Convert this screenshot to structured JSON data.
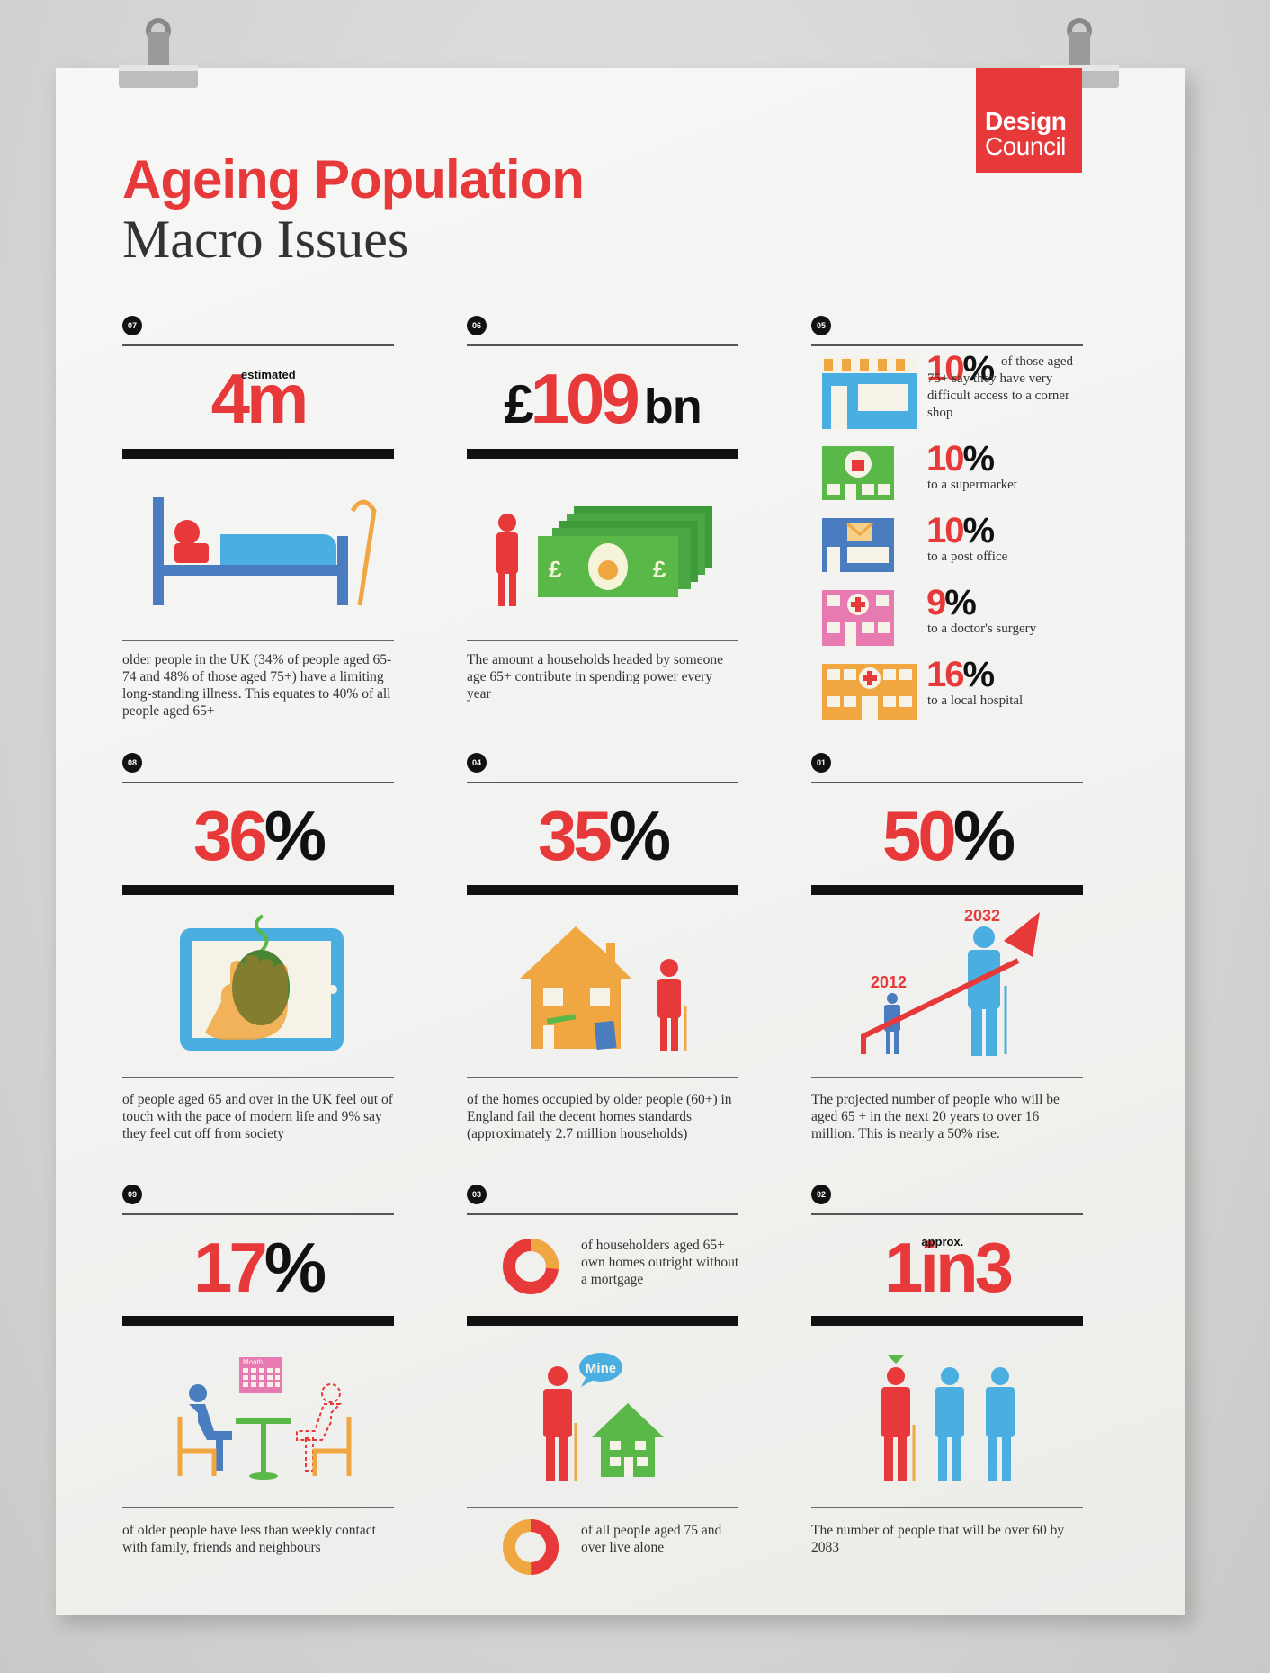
{
  "logo": {
    "line1": "Design",
    "line2": "Council"
  },
  "title": {
    "line1": "Ageing Population",
    "line2": "Macro Issues"
  },
  "colors": {
    "red": "#e8393a",
    "blue": "#4aaee0",
    "green": "#5ab848",
    "orange": "#f0a641",
    "pink": "#e87ab2",
    "black": "#111111"
  },
  "panels": {
    "p07": {
      "number": "07",
      "value": "4m",
      "value_main": "4",
      "value_unit": "m",
      "qualifier": "estimated",
      "description": "older people in the UK (34% of people aged 65-74 and 48% of those aged 75+) have a limiting long-standing illness. This equates to 40% of all people aged 65+",
      "icon": "bed-icon"
    },
    "p06": {
      "number": "06",
      "currency": "£",
      "value_main": "109",
      "value_unit": "bn",
      "description": "The amount a households headed by someone age 65+ contribute in spending power every year",
      "icon": "banknotes-icon"
    },
    "p05": {
      "number": "05",
      "rows": [
        {
          "pct": "10",
          "sign": "%",
          "text": "of those aged 75+ say they have very difficult access to a corner shop",
          "icon": "corner-shop-icon",
          "color": "#4aaee0"
        },
        {
          "pct": "10",
          "sign": "%",
          "text": "to a supermarket",
          "icon": "supermarket-icon",
          "color": "#5ab848"
        },
        {
          "pct": "10",
          "sign": "%",
          "text": "to a post office",
          "icon": "post-office-icon",
          "color": "#4a7cc0"
        },
        {
          "pct": "9",
          "sign": "%",
          "text": "to a doctor's surgery",
          "icon": "doctors-surgery-icon",
          "color": "#e87ab2"
        },
        {
          "pct": "16",
          "sign": "%",
          "text": "to a local hospital",
          "icon": "hospital-icon",
          "color": "#f0a641"
        }
      ]
    },
    "p08": {
      "number": "08",
      "value_main": "36",
      "value_unit": "%",
      "description": "of people aged 65 and over in the UK feel out of touch with the pace of modern life and 9% say they feel cut off from society",
      "icon": "tablet-mouse-icon"
    },
    "p04": {
      "number": "04",
      "value_main": "35",
      "value_unit": "%",
      "description": "of the homes occupied by older people (60+) in England fail the decent homes standards (approximately 2.7 million households)",
      "icon": "damaged-house-icon"
    },
    "p01": {
      "number": "01",
      "value_main": "50",
      "value_unit": "%",
      "year_start": "2012",
      "year_end": "2032",
      "description": "The projected number of people who will be aged 65 + in the next 20 years to over 16 million. This is nearly a 50% rise.",
      "icon": "rising-arrow-icon"
    },
    "p09": {
      "number": "09",
      "value_main": "17",
      "value_unit": "%",
      "calendar_label": "Month",
      "description": "of older people have less than weekly contact with family, friends and neighbours",
      "icon": "table-meeting-icon"
    },
    "p03": {
      "number": "03",
      "donut1_text": "of householders aged 65+ own homes outright without a mortgage",
      "speech": "Mine",
      "donut2_text": "of all people aged 75 and over live alone",
      "icon": "owner-house-icon"
    },
    "p02": {
      "number": "02",
      "value_a": "1",
      "value_b": "in3",
      "qualifier": "approx.",
      "description": "The number of people that will be over 60 by 2083",
      "icon": "three-people-icon"
    }
  }
}
